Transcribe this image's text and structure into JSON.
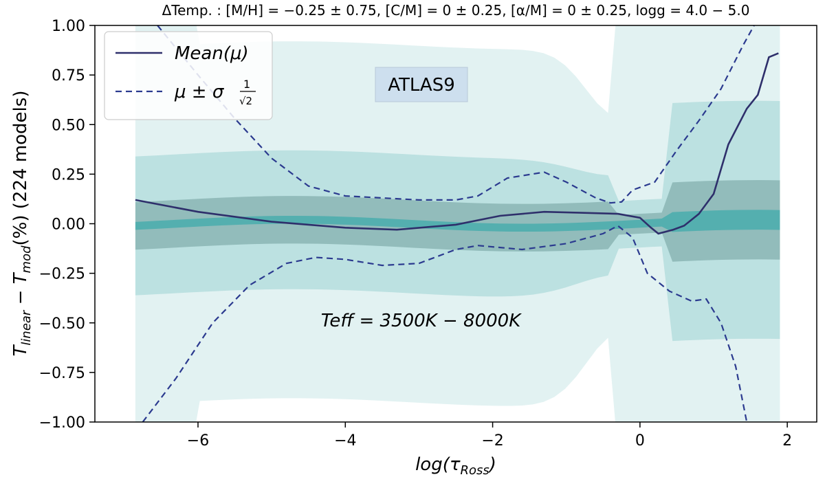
{
  "chart_data": {
    "type": "line",
    "title": "ΔTemp. : [M/H] = −0.25 ± 0.75, [C/M] = 0 ± 0.25, [α/M] = 0 ± 0.25, logg = 4.0 − 5.0",
    "xlabel": "log(τ_Ross)",
    "ylabel": "T_linear − T_mod(%) (224 models)",
    "xlim": [
      -7.4,
      2.4
    ],
    "ylim": [
      -1.0,
      1.0
    ],
    "x_ticks": [
      -6,
      -4,
      -2,
      0,
      2
    ],
    "x_tick_labels": [
      "−6",
      "−4",
      "−2",
      "0",
      "2"
    ],
    "y_ticks": [
      -1.0,
      -0.75,
      -0.5,
      -0.25,
      0.0,
      0.25,
      0.5,
      0.75,
      1.0
    ],
    "y_tick_labels": [
      "−1.00",
      "−0.75",
      "−0.50",
      "−0.25",
      "0.00",
      "0.25",
      "0.50",
      "0.75",
      "1.00"
    ],
    "grid": false,
    "legend_position": "top-left",
    "annotations": {
      "atlas": "ATLAS9",
      "teff": "Teff = 3500K − 8000K"
    },
    "legend": {
      "mean_label": "Mean(μ)",
      "sigma_label": "μ ± σ",
      "sigma_frac_num": "1",
      "sigma_frac_den": "√2"
    },
    "series": [
      {
        "name": "Mean(μ)",
        "style": "solid",
        "color": "#2e2f6b",
        "x": [
          -6.85,
          -6.0,
          -5.0,
          -4.0,
          -3.3,
          -2.5,
          -1.9,
          -1.3,
          -0.8,
          -0.3,
          0.0,
          0.15,
          0.25,
          0.45,
          0.6,
          0.8,
          1.0,
          1.2,
          1.45,
          1.6,
          1.75,
          1.88
        ],
        "values": [
          0.12,
          0.06,
          0.01,
          -0.02,
          -0.03,
          -0.005,
          0.04,
          0.06,
          0.055,
          0.05,
          0.03,
          -0.02,
          -0.05,
          -0.03,
          -0.01,
          0.05,
          0.15,
          0.4,
          0.58,
          0.65,
          0.84,
          0.86
        ]
      },
      {
        "name": "μ + σ/√2",
        "style": "dashed",
        "color": "#2b3a8f",
        "x": [
          -6.55,
          -6.0,
          -5.5,
          -5.0,
          -4.5,
          -4.0,
          -3.5,
          -3.0,
          -2.5,
          -2.2,
          -1.8,
          -1.3,
          -1.0,
          -0.6,
          -0.4,
          -0.25,
          -0.1,
          0.2,
          0.5,
          0.8,
          1.1,
          1.4,
          1.55
        ],
        "values": [
          1.0,
          0.75,
          0.53,
          0.33,
          0.19,
          0.14,
          0.13,
          0.12,
          0.12,
          0.14,
          0.23,
          0.26,
          0.21,
          0.13,
          0.105,
          0.11,
          0.17,
          0.21,
          0.37,
          0.52,
          0.68,
          0.9,
          1.0
        ]
      },
      {
        "name": "μ − σ/√2",
        "style": "dashed",
        "color": "#2b3a8f",
        "x": [
          -6.75,
          -6.3,
          -5.8,
          -5.3,
          -4.8,
          -4.4,
          -4.0,
          -3.5,
          -3.0,
          -2.5,
          -2.2,
          -1.6,
          -1.0,
          -0.5,
          -0.3,
          -0.1,
          0.1,
          0.4,
          0.7,
          0.9,
          1.1,
          1.3,
          1.45
        ],
        "values": [
          -1.0,
          -0.78,
          -0.5,
          -0.31,
          -0.2,
          -0.17,
          -0.18,
          -0.21,
          -0.2,
          -0.13,
          -0.11,
          -0.13,
          -0.1,
          -0.05,
          -0.01,
          -0.07,
          -0.25,
          -0.34,
          -0.39,
          -0.38,
          -0.5,
          -0.72,
          -1.0
        ]
      }
    ]
  }
}
